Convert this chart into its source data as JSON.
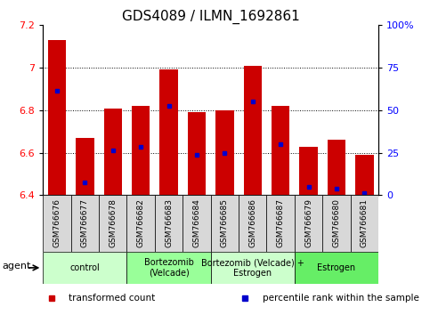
{
  "title": "GDS4089 / ILMN_1692861",
  "samples": [
    "GSM766676",
    "GSM766677",
    "GSM766678",
    "GSM766682",
    "GSM766683",
    "GSM766684",
    "GSM766685",
    "GSM766686",
    "GSM766687",
    "GSM766679",
    "GSM766680",
    "GSM766681"
  ],
  "bar_values": [
    7.13,
    6.67,
    6.81,
    6.82,
    6.99,
    6.79,
    6.8,
    7.01,
    6.82,
    6.63,
    6.66,
    6.59
  ],
  "percentile_values": [
    6.89,
    6.46,
    6.61,
    6.63,
    6.82,
    6.59,
    6.6,
    6.84,
    6.64,
    6.44,
    6.43,
    6.41
  ],
  "bar_bottom": 6.4,
  "ylim": [
    6.4,
    7.2
  ],
  "yticks": [
    6.4,
    6.6,
    6.8,
    7.0,
    7.2
  ],
  "ytick_labels_left": [
    "6.4",
    "6.6",
    "6.8",
    "7",
    "7.2"
  ],
  "right_ytick_labels": [
    "0",
    "25",
    "50",
    "75",
    "100%"
  ],
  "groups": [
    {
      "label": "control",
      "start": 0,
      "end": 3,
      "color": "#ccffcc"
    },
    {
      "label": "Bortezomib\n(Velcade)",
      "start": 3,
      "end": 6,
      "color": "#99ff99"
    },
    {
      "label": "Bortezomib (Velcade) +\nEstrogen",
      "start": 6,
      "end": 9,
      "color": "#ccffcc"
    },
    {
      "label": "Estrogen",
      "start": 9,
      "end": 12,
      "color": "#66ee66"
    }
  ],
  "agent_label": "agent",
  "legend": [
    {
      "color": "#cc0000",
      "label": "transformed count"
    },
    {
      "color": "#0000cc",
      "label": "percentile rank within the sample"
    }
  ],
  "bar_color": "#cc0000",
  "percentile_color": "#0000cc",
  "title_fontsize": 11,
  "bar_width": 0.65,
  "background_color": "#ffffff",
  "sample_box_color": "#d8d8d8",
  "grid_lines": [
    6.6,
    6.8,
    7.0
  ]
}
